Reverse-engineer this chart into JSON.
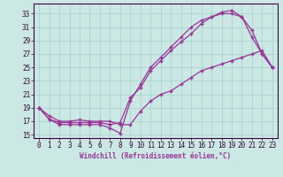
{
  "xlabel": "Windchill (Refroidissement éolien,°C)",
  "bg_color": "#cce8e4",
  "line_color": "#993399",
  "grid_color": "#aad4d0",
  "xlim": [
    -0.5,
    23.5
  ],
  "ylim": [
    14.5,
    34.5
  ],
  "yticks": [
    15,
    17,
    19,
    21,
    23,
    25,
    27,
    29,
    31,
    33
  ],
  "xticks": [
    0,
    1,
    2,
    3,
    4,
    5,
    6,
    7,
    8,
    9,
    10,
    11,
    12,
    13,
    14,
    15,
    16,
    17,
    18,
    19,
    20,
    21,
    22,
    23
  ],
  "line1_x": [
    0,
    1,
    2,
    3,
    4,
    5,
    6,
    7,
    8,
    9,
    10,
    11,
    12,
    13,
    14,
    15,
    16,
    17,
    18,
    19,
    20,
    21,
    22,
    23
  ],
  "line1_y": [
    19.0,
    17.3,
    16.5,
    16.5,
    16.5,
    16.5,
    16.5,
    16.0,
    15.2,
    20.0,
    22.5,
    25.0,
    26.5,
    28.0,
    29.5,
    31.0,
    32.0,
    32.5,
    33.2,
    33.5,
    32.5,
    30.5,
    27.0,
    25.0
  ],
  "line2_x": [
    0,
    1,
    2,
    3,
    4,
    5,
    6,
    7,
    8,
    9,
    10,
    11,
    12,
    13,
    14,
    15,
    16,
    17,
    18,
    19,
    20,
    21,
    22,
    23
  ],
  "line2_y": [
    19.0,
    17.3,
    16.8,
    16.8,
    16.8,
    16.8,
    16.8,
    16.5,
    16.8,
    20.5,
    22.0,
    24.5,
    26.0,
    27.5,
    28.8,
    30.0,
    31.5,
    32.5,
    33.0,
    33.0,
    32.5,
    29.5,
    27.0,
    25.0
  ],
  "line3_x": [
    0,
    1,
    2,
    3,
    4,
    5,
    6,
    7,
    8,
    9,
    10,
    11,
    12,
    13,
    14,
    15,
    16,
    17,
    18,
    19,
    20,
    21,
    22,
    23
  ],
  "line3_y": [
    19.0,
    17.8,
    17.0,
    17.0,
    17.2,
    17.0,
    17.0,
    17.0,
    16.5,
    16.5,
    18.5,
    20.0,
    21.0,
    21.5,
    22.5,
    23.5,
    24.5,
    25.0,
    25.5,
    26.0,
    26.5,
    27.0,
    27.5,
    25.0
  ]
}
